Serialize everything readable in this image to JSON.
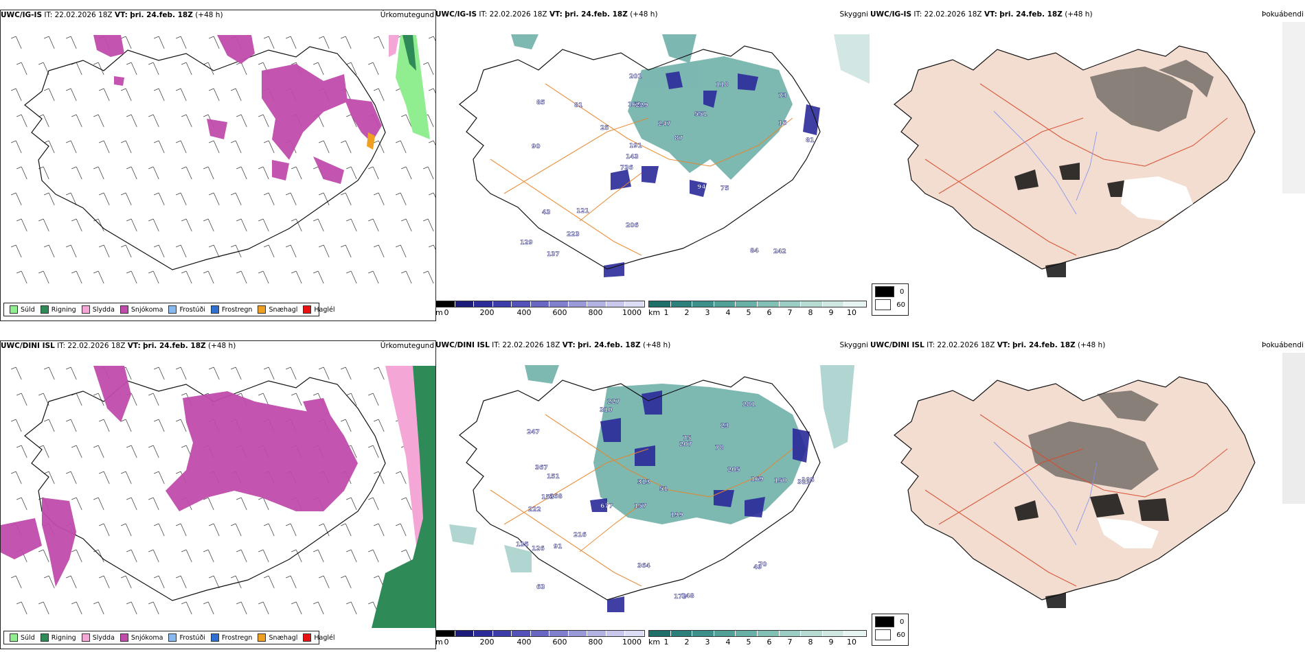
{
  "rows": [
    {
      "model": "UWC/IG-IS",
      "it_label": "IT:",
      "it_value": "22.02.2026 18Z",
      "vt_label": "VT:",
      "vt_value": "þri. 24.feb. 18Z",
      "lead": "(+48 h)"
    },
    {
      "model": "UWC/DINI ISL",
      "it_label": "IT:",
      "it_value": "22.02.2026 18Z",
      "vt_label": "VT:",
      "vt_value": "þri. 24.feb. 18Z",
      "lead": "(+48 h)"
    }
  ],
  "panel_types": {
    "precip": "Úrkomutegund",
    "cloud": "Skyggni",
    "fog": "Þokuábendi"
  },
  "precip_legend": [
    {
      "label": "Súld",
      "color": "#90ee90"
    },
    {
      "label": "Rigning",
      "color": "#2e8b57"
    },
    {
      "label": "Slydda",
      "color": "#f4a6d7"
    },
    {
      "label": "Snjókoma",
      "color": "#c04bab"
    },
    {
      "label": "Frostúði",
      "color": "#87b8f0"
    },
    {
      "label": "Frostregn",
      "color": "#2f6fd0"
    },
    {
      "label": "Snæhagl",
      "color": "#f0a020"
    },
    {
      "label": "Haglél",
      "color": "#e81010"
    }
  ],
  "cloudbase_scale": {
    "unit": "m",
    "ticks": [
      "0",
      "200",
      "400",
      "600",
      "800",
      "1000"
    ],
    "colors": [
      "#000000",
      "#1b1b7a",
      "#2b2b9a",
      "#3c3cab",
      "#5252b8",
      "#6868c4",
      "#8080cf",
      "#9a9ad9",
      "#b2b2e3",
      "#c8c8ec",
      "#dcdcf4"
    ]
  },
  "visibility_scale": {
    "unit": "km",
    "ticks": [
      "1",
      "2",
      "3",
      "4",
      "5",
      "6",
      "7",
      "8",
      "9",
      "10"
    ],
    "colors": [
      "#1e6e6a",
      "#2c7f7a",
      "#3d8f89",
      "#52a097",
      "#69b0a6",
      "#82bfb5",
      "#9ccdc4",
      "#b6dbd3",
      "#cfe8e2",
      "#e6f4f1"
    ]
  },
  "fog_legend": [
    {
      "label": "0",
      "color": "#000000"
    },
    {
      "label": "60",
      "color": "#ffffff"
    }
  ],
  "cloud_labels_top": [
    "242",
    "90",
    "73",
    "736",
    "551",
    "137",
    "162",
    "247",
    "43",
    "25",
    "129",
    "223",
    "229",
    "87",
    "75",
    "85",
    "201",
    "81",
    "94",
    "16",
    "143",
    "206",
    "191",
    "81",
    "118",
    "121",
    "84"
  ],
  "cloud_labels_bottom": [
    "227",
    "23",
    "311",
    "157",
    "199",
    "868",
    "247",
    "78",
    "222",
    "207",
    "51",
    "63",
    "310",
    "677",
    "173",
    "148",
    "364",
    "281",
    "205",
    "216",
    "151",
    "153",
    "105",
    "150",
    "135",
    "367",
    "313",
    "169",
    "70",
    "126",
    "49",
    "75",
    "91"
  ],
  "map_colors": {
    "land_fog": "#f3ddd0",
    "roads_orange": "#e8852a",
    "roads_red": "#d84a2a",
    "rivers": "#7f8ff0",
    "coast": "#111111"
  }
}
